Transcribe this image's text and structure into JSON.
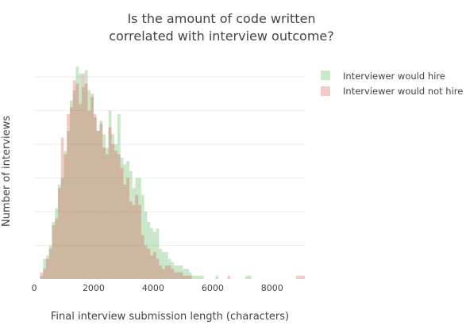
{
  "chart_data": {
    "type": "bar",
    "subtype": "overlaid-histogram",
    "title_lines": [
      "Is the amount of code written",
      "correlated with interview outcome?"
    ],
    "xlabel": "Final interview submission length (characters)",
    "ylabel": "Number of interviews",
    "xlim": [
      0,
      9100
    ],
    "ylim": [
      0,
      64
    ],
    "x_ticks": [
      0,
      2000,
      4000,
      6000,
      8000
    ],
    "x_tick_labels": [
      "0",
      "2000",
      "4000",
      "6000",
      "8000"
    ],
    "y_gridlines": [
      10,
      20,
      30,
      40,
      50,
      60
    ],
    "y_tick_labels_shown": false,
    "bin_width": 100,
    "bin_start": 0,
    "grid": true,
    "legend_position": "top-right",
    "series": [
      {
        "name": "Interviewer would hire",
        "color": "#2ca02c",
        "opacity": 0.25,
        "values": [
          0,
          0,
          1,
          6,
          7,
          10,
          17,
          21,
          28,
          30,
          38,
          44,
          53,
          56,
          63,
          61,
          57,
          62,
          56,
          54,
          48,
          44,
          47,
          43,
          39,
          50,
          43,
          40,
          49,
          36,
          34,
          35,
          32,
          27,
          30,
          30,
          25,
          20,
          17,
          15,
          14,
          15,
          9,
          8,
          8,
          6,
          5,
          4,
          4,
          4,
          3,
          3,
          2,
          1,
          1,
          1,
          1,
          0,
          0,
          0,
          0,
          1,
          0,
          0,
          0,
          0,
          0,
          0,
          0,
          0,
          0,
          1,
          1,
          0,
          0,
          0,
          0,
          0,
          0,
          0,
          0,
          0,
          0,
          0,
          0,
          0,
          0,
          0,
          0,
          0,
          0
        ]
      },
      {
        "name": "Interviewer would not hire",
        "color": "#d62728",
        "opacity": 0.25,
        "values": [
          0,
          0,
          2,
          3,
          6,
          9,
          16,
          18,
          27,
          42,
          37,
          49,
          51,
          59,
          58,
          52,
          61,
          58,
          50,
          55,
          49,
          44,
          46,
          39,
          37,
          45,
          40,
          38,
          37,
          33,
          28,
          30,
          23,
          22,
          25,
          22,
          13,
          10,
          9,
          7,
          8,
          6,
          4,
          3,
          4,
          4,
          3,
          2,
          2,
          2,
          1,
          1,
          1,
          0,
          0,
          0,
          0,
          0,
          0,
          0,
          0,
          0,
          0,
          0,
          0,
          1,
          0,
          0,
          0,
          0,
          0,
          0,
          0,
          0,
          0,
          0,
          0,
          0,
          0,
          0,
          0,
          0,
          0,
          0,
          0,
          0,
          0,
          0,
          1,
          1,
          1
        ]
      }
    ]
  }
}
